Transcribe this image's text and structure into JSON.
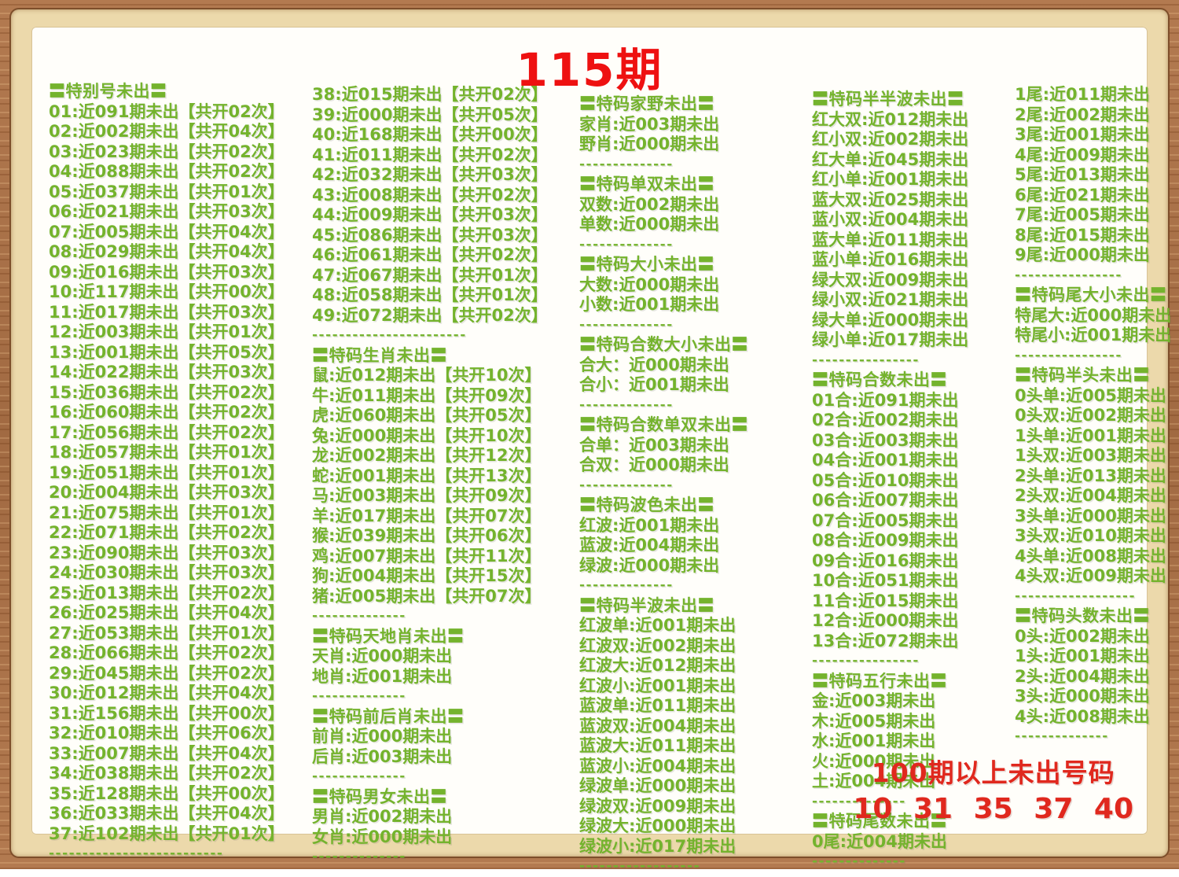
{
  "title": "115期",
  "colors": {
    "text_green": "#74b32d",
    "title_red": "#ee1111",
    "footer_red": "#e0281e"
  },
  "footer": {
    "line1": "100期以上未出号码",
    "line2": "10 31 35 37 40"
  },
  "columns": [
    {
      "blocks": [
        {
          "header": "〓特别号未出〓",
          "items": [
            "01:近091期未出【共开02次】",
            "02:近002期未出【共开04次】",
            "03:近023期未出【共开02次】",
            "04:近088期未出【共开02次】",
            "05:近037期未出【共开01次】",
            "06:近021期未出【共开03次】",
            "07:近005期未出【共开04次】",
            "08:近029期未出【共开04次】",
            "09:近016期未出【共开03次】",
            "10:近117期未出【共开00次】",
            "11:近017期未出【共开03次】",
            "12:近003期未出【共开01次】",
            "13:近001期未出【共开05次】",
            "14:近022期未出【共开03次】",
            "15:近036期未出【共开02次】",
            "16:近060期未出【共开02次】",
            "17:近056期未出【共开02次】",
            "18:近057期未出【共开01次】",
            "19:近051期未出【共开01次】",
            "20:近004期未出【共开03次】",
            "21:近075期未出【共开01次】",
            "22:近071期未出【共开02次】",
            "23:近090期未出【共开03次】",
            "24:近030期未出【共开03次】",
            "25:近013期未出【共开02次】",
            "26:近025期未出【共开04次】",
            "27:近053期未出【共开01次】",
            "28:近066期未出【共开02次】",
            "29:近045期未出【共开02次】",
            "30:近012期未出【共开04次】",
            "31:近156期未出【共开00次】",
            "32:近010期未出【共开06次】",
            "33:近007期未出【共开04次】",
            "34:近038期未出【共开02次】",
            "35:近128期未出【共开00次】",
            "36:近033期未出【共开04次】",
            "37:近102期未出【共开01次】"
          ],
          "sep": "--------------------------"
        }
      ]
    },
    {
      "blocks": [
        {
          "items": [
            "38:近015期未出【共开02次】",
            "39:近000期未出【共开05次】",
            "40:近168期未出【共开00次】",
            "41:近011期未出【共开02次】",
            "42:近032期未出【共开03次】",
            "43:近008期未出【共开02次】",
            "44:近009期未出【共开03次】",
            "45:近086期未出【共开03次】",
            "46:近061期未出【共开02次】",
            "47:近067期未出【共开01次】",
            "48:近058期未出【共开01次】",
            "49:近072期未出【共开02次】"
          ],
          "sep": "-----------------------"
        },
        {
          "header": "〓特码生肖未出〓",
          "items": [
            "鼠:近012期未出【共开10次】",
            "牛:近011期未出【共开09次】",
            "虎:近060期未出【共开05次】",
            "兔:近000期未出【共开10次】",
            "龙:近002期未出【共开12次】",
            "蛇:近001期未出【共开13次】",
            "马:近003期未出【共开09次】",
            "羊:近017期未出【共开07次】",
            "猴:近039期未出【共开06次】",
            "鸡:近007期未出【共开11次】",
            "狗:近004期未出【共开15次】",
            "猪:近005期未出【共开07次】"
          ],
          "sep": "--------------"
        },
        {
          "header": "〓特码天地肖未出〓",
          "items": [
            "天肖:近000期未出",
            "地肖:近001期未出"
          ],
          "sep": "--------------"
        },
        {
          "header": "〓特码前后肖未出〓",
          "items": [
            "前肖:近000期未出",
            "后肖:近003期未出"
          ],
          "sep": "--------------"
        },
        {
          "header": "〓特码男女未出〓",
          "items": [
            "男肖:近002期未出",
            "女肖:近000期未出"
          ],
          "sep": "--------------"
        }
      ]
    },
    {
      "blocks": [
        {
          "header": "〓特码家野未出〓",
          "items": [
            "家肖:近003期未出",
            "野肖:近000期未出"
          ],
          "sep": "--------------"
        },
        {
          "header": "〓特码单双未出〓",
          "items": [
            "双数:近002期未出",
            "单数:近000期未出"
          ],
          "sep": "--------------"
        },
        {
          "header": "〓特码大小未出〓",
          "items": [
            "大数:近000期未出",
            "小数:近001期未出"
          ],
          "sep": "--------------"
        },
        {
          "header": "〓特码合数大小未出〓",
          "items": [
            "合大：近000期未出",
            "合小：近001期未出"
          ],
          "sep": "--------------"
        },
        {
          "header": "〓特码合数单双未出〓",
          "items": [
            "合单：近003期未出",
            "合双：近000期未出"
          ],
          "sep": "--------------"
        },
        {
          "header": "〓特码波色未出〓",
          "items": [
            "红波:近001期未出",
            "蓝波:近004期未出",
            "绿波:近000期未出"
          ],
          "sep": "--------------"
        },
        {
          "header": "〓特码半波未出〓",
          "items": [
            "红波单:近001期未出",
            "红波双:近002期未出",
            "红波大:近012期未出",
            "红波小:近001期未出",
            "蓝波单:近011期未出",
            "蓝波双:近004期未出",
            "蓝波大:近011期未出",
            "蓝波小:近004期未出",
            "绿波单:近000期未出",
            "绿波双:近009期未出",
            "绿波大:近000期未出",
            "绿波小:近017期未出"
          ],
          "sep": "------------------"
        }
      ]
    },
    {
      "blocks": [
        {
          "header": "〓特码半半波未出〓",
          "items": [
            "红大双:近012期未出",
            "红小双:近002期未出",
            "红大单:近045期未出",
            "红小单:近001期未出",
            "蓝大双:近025期未出",
            "蓝小双:近004期未出",
            "蓝大单:近011期未出",
            "蓝小单:近016期未出",
            "绿大双:近009期未出",
            "绿小双:近021期未出",
            "绿大单:近000期未出",
            "绿小单:近017期未出"
          ],
          "sep": "----------------"
        },
        {
          "header": "〓特码合数未出〓",
          "items": [
            "01合:近091期未出",
            "02合:近002期未出",
            "03合:近003期未出",
            "04合:近001期未出",
            "05合:近010期未出",
            "06合:近007期未出",
            "07合:近005期未出",
            "08合:近009期未出",
            "09合:近016期未出",
            "10合:近051期未出",
            "11合:近015期未出",
            "12合:近000期未出",
            "13合:近072期未出"
          ],
          "sep": "----------------"
        },
        {
          "header": "〓特码五行未出〓",
          "items": [
            "金:近003期未出",
            "木:近005期未出",
            "水:近001期未出",
            "火:近000期未出",
            "土:近004期未出"
          ],
          "sep": "--------------"
        },
        {
          "header": "〓特码尾数未出〓",
          "items": [
            "0尾:近004期未出"
          ],
          "sep": "--------------"
        }
      ]
    },
    {
      "blocks": [
        {
          "items": [
            "1尾:近011期未出",
            "2尾:近002期未出",
            "3尾:近001期未出",
            "4尾:近009期未出",
            "5尾:近013期未出",
            "6尾:近021期未出",
            "7尾:近005期未出",
            "8尾:近015期未出",
            "9尾:近000期未出"
          ],
          "sep": "----------------"
        },
        {
          "header": "〓特码尾大小未出〓",
          "items": [
            "特尾大:近000期未出",
            "特尾小:近001期未出"
          ],
          "sep": "----------------"
        },
        {
          "header": "〓特码半头未出〓",
          "items": [
            "0头单:近005期未出",
            "0头双:近002期未出",
            "1头单:近001期未出",
            "1头双:近003期未出",
            "2头单:近013期未出",
            "2头双:近004期未出",
            "3头单:近000期未出",
            "3头双:近010期未出",
            "4头单:近008期未出",
            "4头双:近009期未出"
          ],
          "sep": "------------------"
        },
        {
          "header": "〓特码头数未出〓",
          "items": [
            "0头:近002期未出",
            "1头:近001期未出",
            "2头:近004期未出",
            "3头:近000期未出",
            "4头:近008期未出"
          ],
          "sep": "--------------"
        }
      ]
    }
  ]
}
